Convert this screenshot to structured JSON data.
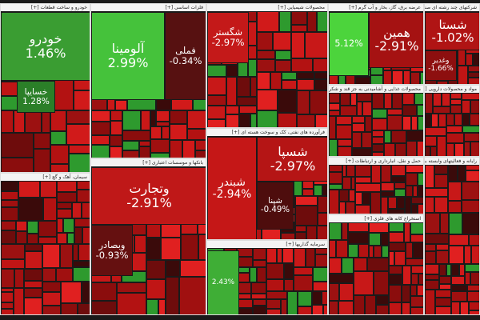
{
  "sectors": [
    {
      "title": "خودرو و ساخت قطعات [+]",
      "tiles": [
        {
          "name": "خودرو",
          "change": "1.46%"
        },
        {
          "name": "خسایپا",
          "change": "1.28%"
        }
      ]
    },
    {
      "title": "فلزات اساسی [+]",
      "tiles": [
        {
          "name": "آلومینا",
          "change": "2.99%"
        },
        {
          "name": "فملی",
          "change": "-0.34%"
        }
      ]
    },
    {
      "title": "محصولات شیمیایی [+]",
      "tiles": [
        {
          "name": "شگستر",
          "change": "-2.97%"
        }
      ]
    },
    {
      "title": "عرضه برق، گاز، بخار و آب گرم [+]",
      "tiles": [
        {
          "change": "5.12%"
        },
        {
          "name": "همین",
          "change": "-2.91%"
        }
      ]
    },
    {
      "title": "شرکتهای چند رشته ای صنعتی [+]",
      "tiles": [
        {
          "name": "شستا",
          "change": "-1.02%"
        },
        {
          "name": "وغدیر",
          "change": "-1.66%"
        }
      ]
    },
    {
      "title": "بانکها و موسسات اعتباری [+]",
      "tiles": [
        {
          "name": "وتجارت",
          "change": "-2.91%"
        },
        {
          "name": "وبصادر",
          "change": "-0.93%"
        }
      ]
    },
    {
      "title": "فرآورده های نفتی، کک و سوخت هسته ای [+]",
      "tiles": [
        {
          "name": "شبندر",
          "change": "-2.94%"
        },
        {
          "name": "شسپا",
          "change": "-2.97%"
        },
        {
          "name": "شپنا",
          "change": "-0.49%"
        }
      ]
    },
    {
      "title": "سیمان، آهک و گچ [+]",
      "tiles": []
    },
    {
      "title": "سرمایه گذاریها [+]",
      "tiles": [
        {
          "change": "2.43%"
        }
      ]
    },
    {
      "title": "محصولات غذایی و آشامیدنی به جز قند و شکر [+]",
      "tiles": []
    },
    {
      "title": "مواد و محصولات دارویی [+]",
      "tiles": []
    },
    {
      "title": "حمل و نقل، انبارداری و ارتباطات [+]",
      "tiles": []
    },
    {
      "title": "استخراج کانه های فلزی [+]",
      "tiles": []
    },
    {
      "title": "رایانه و فعالیتهای وابسته به آن [+]",
      "tiles": []
    }
  ]
}
